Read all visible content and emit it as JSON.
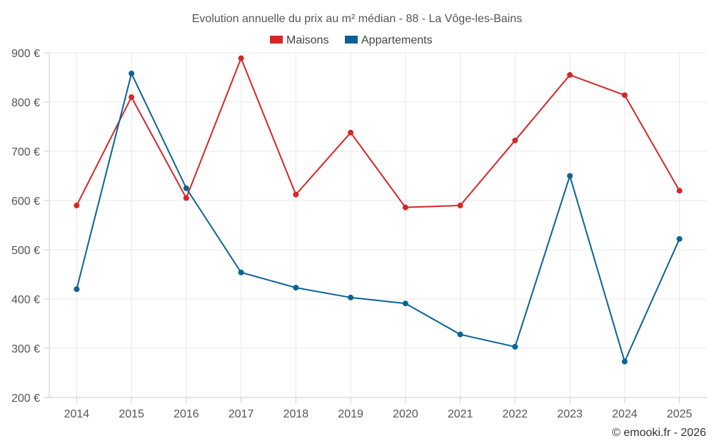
{
  "chart_data": {
    "type": "line",
    "title": "Evolution annuelle du prix au m² médian - 88 - La Vôge-les-Bains",
    "categories": [
      "2014",
      "2015",
      "2016",
      "2017",
      "2018",
      "2019",
      "2020",
      "2021",
      "2022",
      "2023",
      "2024",
      "2025"
    ],
    "series": [
      {
        "name": "Maisons",
        "color": "#d62728",
        "values": [
          590,
          810,
          605,
          889,
          612,
          738,
          586,
          590,
          722,
          855,
          814,
          620
        ]
      },
      {
        "name": "Appartements",
        "color": "#0b6395",
        "values": [
          420,
          858,
          625,
          454,
          423,
          403,
          391,
          328,
          303,
          650,
          273,
          522
        ]
      }
    ],
    "ylim": [
      200,
      900
    ],
    "yticks": [
      200,
      300,
      400,
      500,
      600,
      700,
      800,
      900
    ],
    "ytick_labels": [
      "200 €",
      "300 €",
      "400 €",
      "500 €",
      "600 €",
      "700 €",
      "800 €",
      "900 €"
    ],
    "xlabel": "",
    "ylabel": "",
    "grid": true,
    "legend_position": "top-center"
  },
  "credit": "© emooki.fr - 2026"
}
